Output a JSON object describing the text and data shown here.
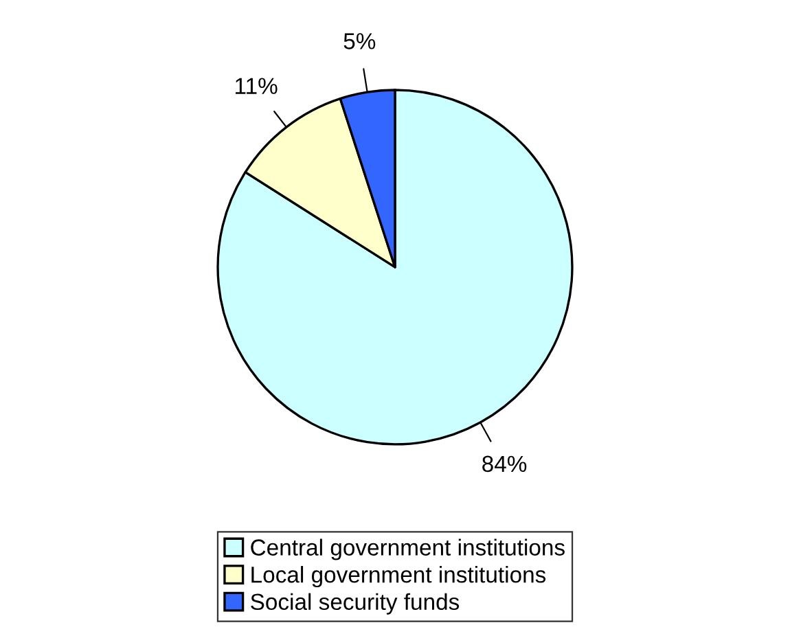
{
  "chart_data": {
    "type": "pie",
    "categories": [
      "Central government institutions",
      "Local government institutions",
      "Social security funds"
    ],
    "values": [
      84,
      11,
      5
    ],
    "colors": [
      "#ccffff",
      "#ffffcc",
      "#3366ff"
    ],
    "value_labels": [
      "84%",
      "11%",
      "5%"
    ],
    "legend": "bottom"
  }
}
